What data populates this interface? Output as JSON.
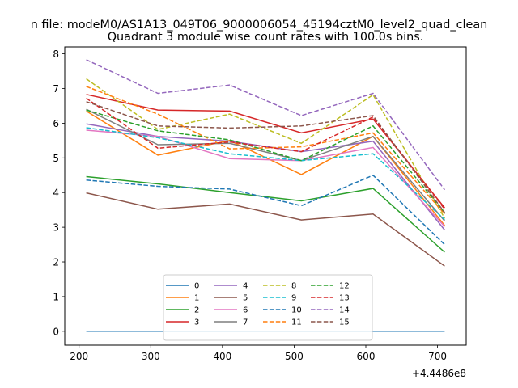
{
  "figure": {
    "suptitle": "n file: modeM0/AS1A13_049T06_9000006054_45194cztM0_level2_quad_clean",
    "offset_label": "+4.4486e8"
  },
  "chart_data": {
    "type": "line",
    "title": "Quadrant 3 module wise count rates with 100.0s bins.",
    "xlabel": "",
    "ylabel": "",
    "x": [
      210,
      310,
      410,
      510,
      610,
      710
    ],
    "xlim": [
      180,
      740
    ],
    "ylim": [
      -0.4,
      8.2
    ],
    "xticks": [
      200,
      300,
      400,
      500,
      600,
      700
    ],
    "yticks": [
      0,
      1,
      2,
      3,
      4,
      5,
      6,
      7,
      8
    ],
    "grid": false,
    "legend": {
      "placement": "lower center",
      "ncol": 4
    },
    "series": [
      {
        "name": "0",
        "color": "#1f77b4",
        "dashed": false,
        "values": [
          0.0,
          0.0,
          0.0,
          0.0,
          0.0,
          0.0
        ]
      },
      {
        "name": "1",
        "color": "#ff7f0e",
        "dashed": false,
        "values": [
          6.35,
          5.08,
          5.5,
          4.52,
          5.62,
          3.05
        ]
      },
      {
        "name": "2",
        "color": "#2ca02c",
        "dashed": false,
        "values": [
          4.46,
          4.25,
          4.0,
          3.76,
          4.12,
          2.28
        ]
      },
      {
        "name": "3",
        "color": "#d62728",
        "dashed": false,
        "values": [
          6.83,
          6.38,
          6.35,
          5.72,
          6.12,
          3.56
        ]
      },
      {
        "name": "4",
        "color": "#9467bd",
        "dashed": false,
        "values": [
          5.98,
          5.62,
          5.48,
          5.18,
          5.48,
          2.92
        ]
      },
      {
        "name": "5",
        "color": "#8c564b",
        "dashed": false,
        "values": [
          3.99,
          3.52,
          3.67,
          3.21,
          3.38,
          1.88
        ]
      },
      {
        "name": "6",
        "color": "#e377c2",
        "dashed": false,
        "values": [
          5.8,
          5.62,
          4.98,
          4.92,
          5.3,
          3.02
        ]
      },
      {
        "name": "7",
        "color": "#7f7f7f",
        "dashed": false,
        "values": [
          6.4,
          5.38,
          5.42,
          4.92,
          5.62,
          3.18
        ]
      },
      {
        "name": "8",
        "color": "#bcbd22",
        "dashed": true,
        "values": [
          7.28,
          5.82,
          6.26,
          5.42,
          6.82,
          3.26
        ]
      },
      {
        "name": "9",
        "color": "#17becf",
        "dashed": true,
        "values": [
          5.87,
          5.58,
          5.12,
          4.92,
          5.12,
          3.22
        ]
      },
      {
        "name": "10",
        "color": "#1f77b4",
        "dashed": true,
        "values": [
          4.36,
          4.18,
          4.1,
          3.62,
          4.5,
          2.5
        ]
      },
      {
        "name": "11",
        "color": "#ff7f0e",
        "dashed": true,
        "values": [
          7.06,
          6.26,
          5.26,
          5.32,
          5.72,
          3.38
        ]
      },
      {
        "name": "12",
        "color": "#2ca02c",
        "dashed": true,
        "values": [
          6.38,
          5.78,
          5.52,
          4.92,
          5.92,
          3.42
        ]
      },
      {
        "name": "13",
        "color": "#d62728",
        "dashed": true,
        "values": [
          6.72,
          5.28,
          5.46,
          5.18,
          6.18,
          3.52
        ]
      },
      {
        "name": "14",
        "color": "#9467bd",
        "dashed": true,
        "values": [
          7.83,
          6.86,
          7.1,
          6.22,
          6.86,
          4.08
        ]
      },
      {
        "name": "15",
        "color": "#8c564b",
        "dashed": true,
        "values": [
          6.62,
          5.92,
          5.86,
          5.92,
          6.22,
          3.42
        ]
      }
    ]
  }
}
